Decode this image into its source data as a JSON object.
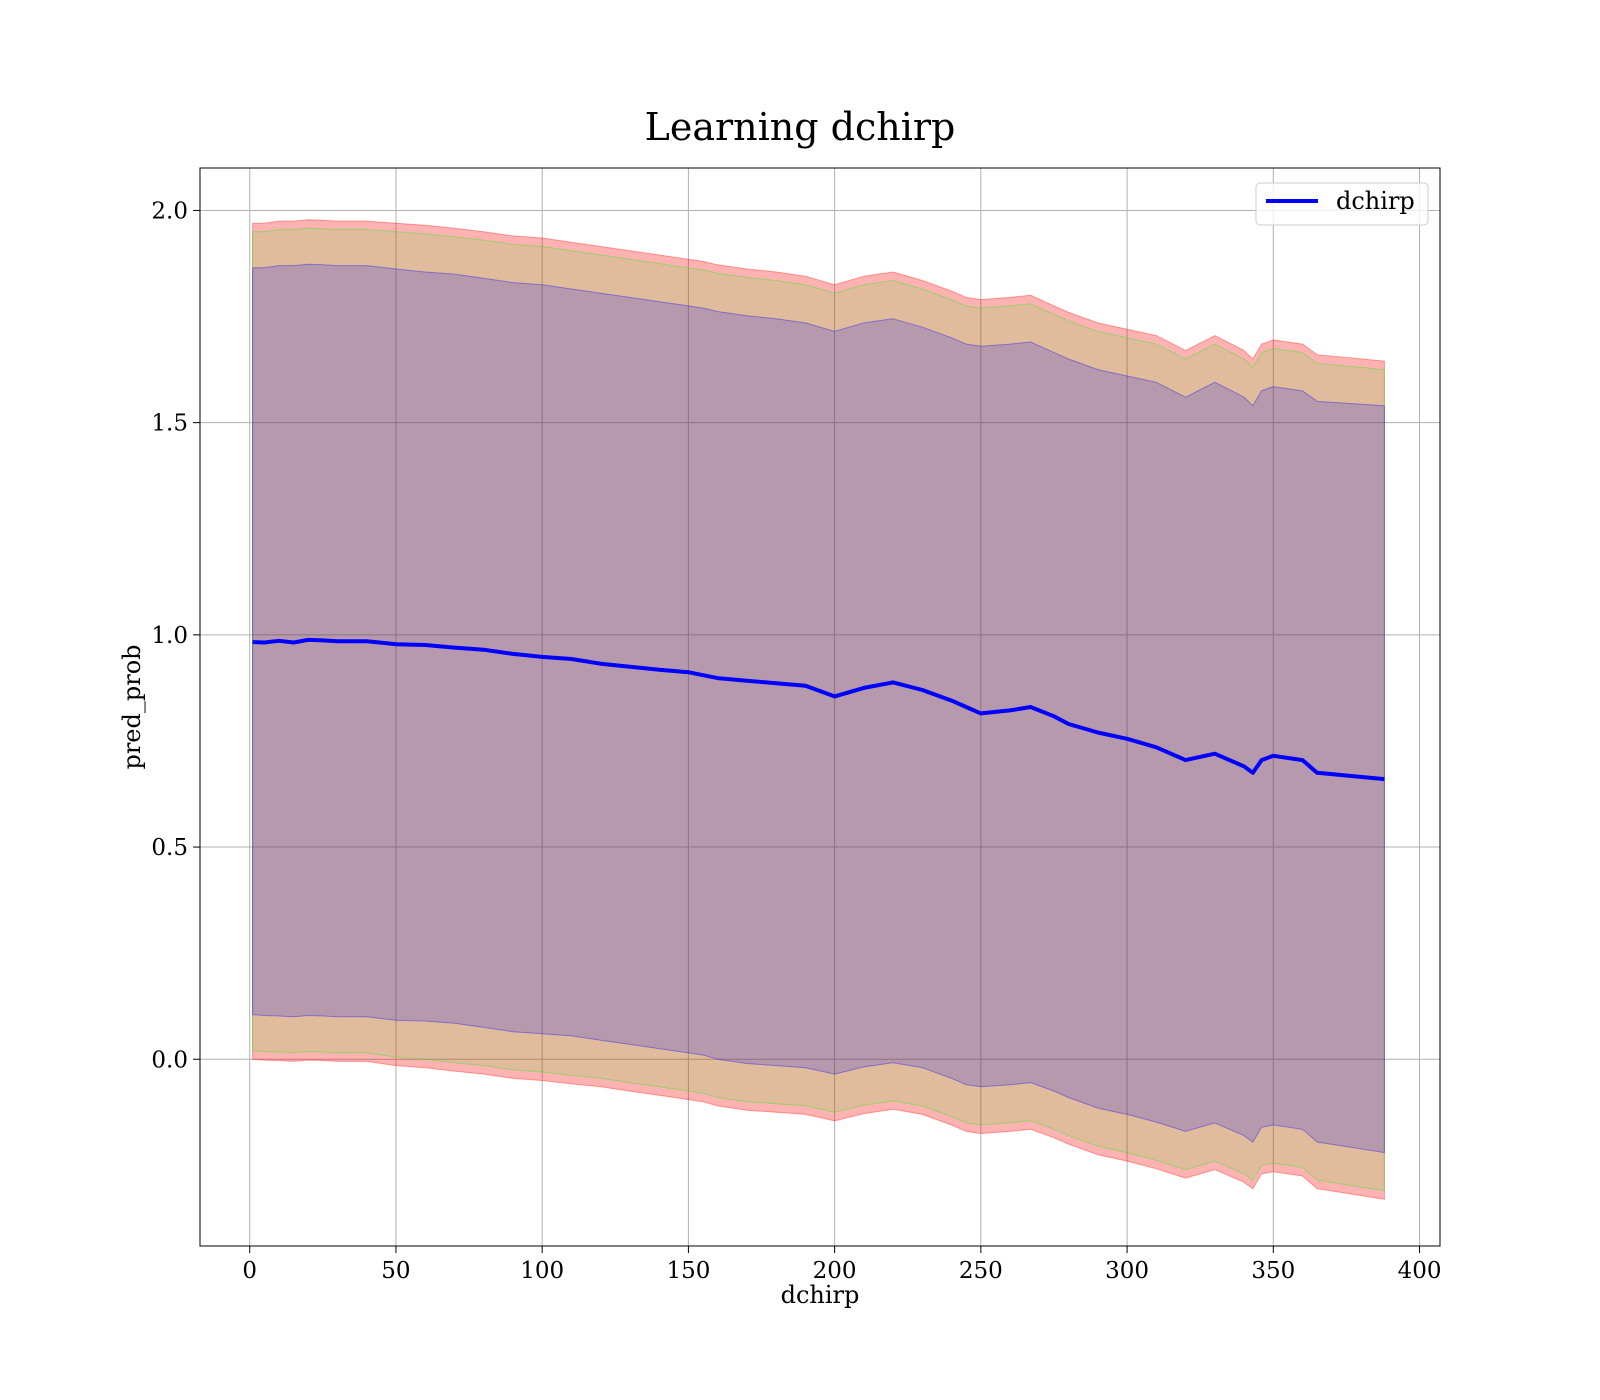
{
  "chart_data": {
    "type": "line",
    "title": "Learning dchirp",
    "xlabel": "dchirp",
    "ylabel": "pred_prob",
    "xlim": [
      -17,
      407
    ],
    "ylim": [
      -0.44,
      2.1
    ],
    "xticks": [
      0,
      50,
      100,
      150,
      200,
      250,
      300,
      350,
      400
    ],
    "yticks": [
      0.0,
      0.5,
      1.0,
      1.5,
      2.0
    ],
    "xtick_labels": [
      "0",
      "50",
      "100",
      "150",
      "200",
      "250",
      "300",
      "350",
      "400"
    ],
    "ytick_labels": [
      "0.0",
      "0.5",
      "1.0",
      "1.5",
      "2.0"
    ],
    "grid": true,
    "legend_position": "top-right",
    "series": [
      {
        "name": "dchirp",
        "color": "#0000ff",
        "x": [
          1,
          5,
          10,
          15,
          20,
          25,
          30,
          40,
          50,
          60,
          70,
          80,
          90,
          100,
          110,
          120,
          130,
          140,
          150,
          155,
          160,
          170,
          180,
          190,
          200,
          210,
          220,
          230,
          240,
          245,
          250,
          260,
          267,
          275,
          280,
          290,
          300,
          310,
          320,
          330,
          340,
          343,
          346,
          350,
          360,
          365,
          388
        ],
        "y": [
          0.983,
          0.982,
          0.986,
          0.982,
          0.988,
          0.987,
          0.985,
          0.985,
          0.978,
          0.976,
          0.97,
          0.965,
          0.955,
          0.948,
          0.943,
          0.932,
          0.925,
          0.918,
          0.912,
          0.905,
          0.898,
          0.892,
          0.886,
          0.88,
          0.855,
          0.875,
          0.888,
          0.87,
          0.845,
          0.83,
          0.815,
          0.822,
          0.83,
          0.808,
          0.79,
          0.77,
          0.755,
          0.735,
          0.705,
          0.72,
          0.69,
          0.675,
          0.705,
          0.715,
          0.705,
          0.675,
          0.66
        ]
      }
    ],
    "bands": [
      {
        "color": "#ff0000",
        "opacity": 0.3,
        "upper": [
          1.97,
          1.97,
          1.975,
          1.975,
          1.978,
          1.977,
          1.975,
          1.975,
          1.97,
          1.965,
          1.958,
          1.95,
          1.94,
          1.935,
          1.925,
          1.915,
          1.905,
          1.895,
          1.885,
          1.88,
          1.872,
          1.862,
          1.855,
          1.845,
          1.825,
          1.845,
          1.855,
          1.835,
          1.81,
          1.795,
          1.79,
          1.795,
          1.8,
          1.775,
          1.76,
          1.735,
          1.72,
          1.705,
          1.67,
          1.705,
          1.67,
          1.65,
          1.685,
          1.695,
          1.685,
          1.66,
          1.645
        ],
        "lower": [
          0.0,
          -0.002,
          -0.003,
          -0.005,
          -0.002,
          -0.003,
          -0.005,
          -0.005,
          -0.015,
          -0.02,
          -0.028,
          -0.035,
          -0.045,
          -0.05,
          -0.058,
          -0.065,
          -0.075,
          -0.085,
          -0.095,
          -0.1,
          -0.11,
          -0.12,
          -0.125,
          -0.13,
          -0.145,
          -0.128,
          -0.118,
          -0.13,
          -0.155,
          -0.17,
          -0.175,
          -0.17,
          -0.165,
          -0.185,
          -0.2,
          -0.225,
          -0.24,
          -0.258,
          -0.28,
          -0.26,
          -0.29,
          -0.305,
          -0.27,
          -0.265,
          -0.275,
          -0.305,
          -0.33
        ]
      },
      {
        "color": "#00ff00",
        "opacity": 0.12,
        "upper": [
          1.95,
          1.95,
          1.955,
          1.955,
          1.958,
          1.957,
          1.955,
          1.955,
          1.95,
          1.945,
          1.938,
          1.93,
          1.92,
          1.915,
          1.905,
          1.895,
          1.885,
          1.875,
          1.865,
          1.86,
          1.852,
          1.842,
          1.835,
          1.825,
          1.805,
          1.825,
          1.835,
          1.815,
          1.79,
          1.775,
          1.77,
          1.775,
          1.78,
          1.755,
          1.74,
          1.715,
          1.7,
          1.685,
          1.65,
          1.685,
          1.65,
          1.63,
          1.665,
          1.675,
          1.665,
          1.64,
          1.625
        ],
        "lower": [
          0.02,
          0.018,
          0.017,
          0.015,
          0.018,
          0.017,
          0.015,
          0.015,
          0.005,
          0.0,
          -0.008,
          -0.015,
          -0.025,
          -0.03,
          -0.038,
          -0.045,
          -0.055,
          -0.065,
          -0.075,
          -0.08,
          -0.09,
          -0.1,
          -0.105,
          -0.11,
          -0.125,
          -0.108,
          -0.098,
          -0.11,
          -0.135,
          -0.15,
          -0.155,
          -0.15,
          -0.145,
          -0.165,
          -0.18,
          -0.205,
          -0.22,
          -0.238,
          -0.26,
          -0.24,
          -0.27,
          -0.285,
          -0.25,
          -0.245,
          -0.255,
          -0.285,
          -0.31
        ]
      },
      {
        "color": "#0000ff",
        "opacity": 0.18,
        "upper": [
          1.865,
          1.865,
          1.87,
          1.87,
          1.873,
          1.872,
          1.87,
          1.87,
          1.862,
          1.855,
          1.85,
          1.84,
          1.83,
          1.825,
          1.815,
          1.805,
          1.795,
          1.785,
          1.775,
          1.77,
          1.762,
          1.752,
          1.745,
          1.735,
          1.715,
          1.735,
          1.745,
          1.725,
          1.7,
          1.685,
          1.68,
          1.685,
          1.69,
          1.665,
          1.65,
          1.625,
          1.61,
          1.595,
          1.56,
          1.595,
          1.56,
          1.54,
          1.575,
          1.585,
          1.575,
          1.55,
          1.54
        ],
        "lower": [
          0.105,
          0.103,
          0.102,
          0.1,
          0.103,
          0.102,
          0.1,
          0.1,
          0.092,
          0.09,
          0.085,
          0.075,
          0.065,
          0.06,
          0.055,
          0.045,
          0.035,
          0.025,
          0.015,
          0.01,
          0.0,
          -0.01,
          -0.015,
          -0.02,
          -0.035,
          -0.018,
          -0.008,
          -0.02,
          -0.045,
          -0.06,
          -0.065,
          -0.06,
          -0.055,
          -0.075,
          -0.09,
          -0.115,
          -0.13,
          -0.148,
          -0.17,
          -0.15,
          -0.18,
          -0.195,
          -0.16,
          -0.155,
          -0.165,
          -0.195,
          -0.22
        ]
      }
    ]
  }
}
